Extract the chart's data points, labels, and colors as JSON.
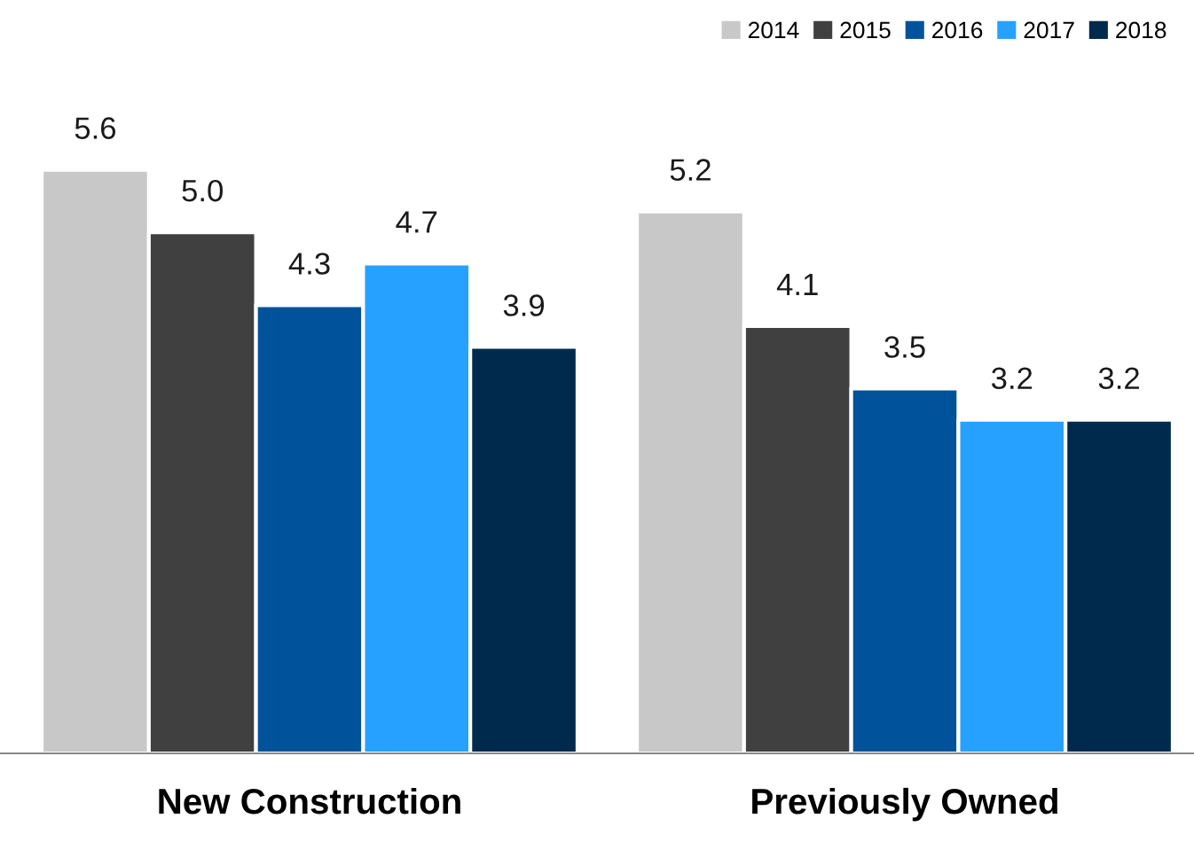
{
  "chart_data": {
    "type": "bar",
    "categories": [
      "New Construction",
      "Previously Owned"
    ],
    "series": [
      {
        "name": "2014",
        "color": "#c8c8c8",
        "values": [
          5.6,
          5.2
        ],
        "value_labels": [
          "5.6",
          "5.2"
        ]
      },
      {
        "name": "2015",
        "color": "#404040",
        "values": [
          5.0,
          4.1
        ],
        "value_labels": [
          "5.0",
          "4.1"
        ]
      },
      {
        "name": "2016",
        "color": "#00539b",
        "values": [
          4.3,
          3.5
        ],
        "value_labels": [
          "4.3",
          "3.5"
        ]
      },
      {
        "name": "2017",
        "color": "#27a1ff",
        "values": [
          4.7,
          3.2
        ],
        "value_labels": [
          "4.7",
          "3.2"
        ]
      },
      {
        "name": "2018",
        "color": "#002a4d",
        "values": [
          3.9,
          3.2
        ],
        "value_labels": [
          "3.9",
          "3.2"
        ]
      }
    ],
    "legend": "top right",
    "grid": false
  }
}
